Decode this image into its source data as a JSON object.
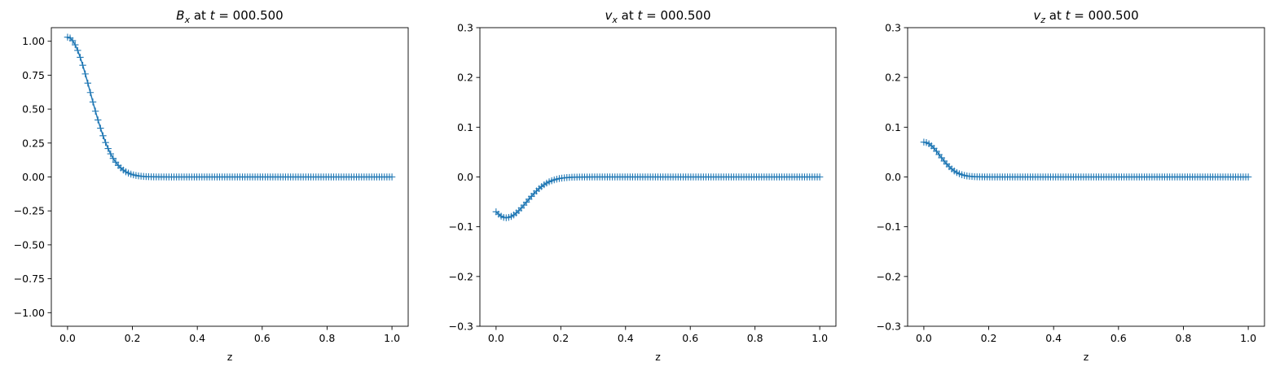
{
  "chart_data": [
    {
      "type": "line",
      "title": {
        "sym": "B",
        "sub": "x",
        "mid": " at ",
        "tvar": "t",
        "rest": " = 000.500"
      },
      "xlabel": "z",
      "ylabel": "",
      "xlim": [
        -0.05,
        1.05
      ],
      "ylim": [
        -1.1,
        1.1
      ],
      "xticks": [
        0.0,
        0.2,
        0.4,
        0.6,
        0.8,
        1.0
      ],
      "xtick_labels": [
        "0.0",
        "0.2",
        "0.4",
        "0.6",
        "0.8",
        "1.0"
      ],
      "yticks": [
        -1.0,
        -0.75,
        -0.5,
        -0.25,
        0.0,
        0.25,
        0.5,
        0.75,
        1.0
      ],
      "ytick_labels": [
        "−1.00",
        "−0.75",
        "−0.50",
        "−0.25",
        "0.00",
        "0.25",
        "0.50",
        "0.75",
        "1.00"
      ],
      "marker": "+",
      "color": "#1f77b4",
      "n_points": 129,
      "profile": {
        "kind": "decay",
        "amplitude": 1.03,
        "scale": 0.07
      }
    },
    {
      "type": "line",
      "title": {
        "sym": "v",
        "sub": "x",
        "mid": " at ",
        "tvar": "t",
        "rest": " = 000.500"
      },
      "xlabel": "z",
      "ylabel": "",
      "xlim": [
        -0.05,
        1.05
      ],
      "ylim": [
        -0.3,
        0.3
      ],
      "xticks": [
        0.0,
        0.2,
        0.4,
        0.6,
        0.8,
        1.0
      ],
      "xtick_labels": [
        "0.0",
        "0.2",
        "0.4",
        "0.6",
        "0.8",
        "1.0"
      ],
      "yticks": [
        -0.3,
        -0.2,
        -0.1,
        0.0,
        0.1,
        0.2,
        0.3
      ],
      "ytick_labels": [
        "−0.3",
        "−0.2",
        "−0.1",
        "0.0",
        "0.1",
        "0.2",
        "0.3"
      ],
      "marker": "+",
      "color": "#1f77b4",
      "n_points": 129,
      "profile": {
        "kind": "dip",
        "start": -0.07,
        "min_value": -0.082,
        "min_at": 0.03,
        "width": 0.065
      }
    },
    {
      "type": "line",
      "title": {
        "sym": "v",
        "sub": "z",
        "mid": " at ",
        "tvar": "t",
        "rest": " = 000.500"
      },
      "xlabel": "z",
      "ylabel": "",
      "xlim": [
        -0.05,
        1.05
      ],
      "ylim": [
        -0.3,
        0.3
      ],
      "xticks": [
        0.0,
        0.2,
        0.4,
        0.6,
        0.8,
        1.0
      ],
      "xtick_labels": [
        "0.0",
        "0.2",
        "0.4",
        "0.6",
        "0.8",
        "1.0"
      ],
      "yticks": [
        -0.3,
        -0.2,
        -0.1,
        0.0,
        0.1,
        0.2,
        0.3
      ],
      "ytick_labels": [
        "−0.3",
        "−0.2",
        "−0.1",
        "0.0",
        "0.1",
        "0.2",
        "0.3"
      ],
      "marker": "+",
      "color": "#1f77b4",
      "n_points": 129,
      "profile": {
        "kind": "gauss",
        "amplitude": 0.07,
        "scale": 0.05
      }
    }
  ]
}
